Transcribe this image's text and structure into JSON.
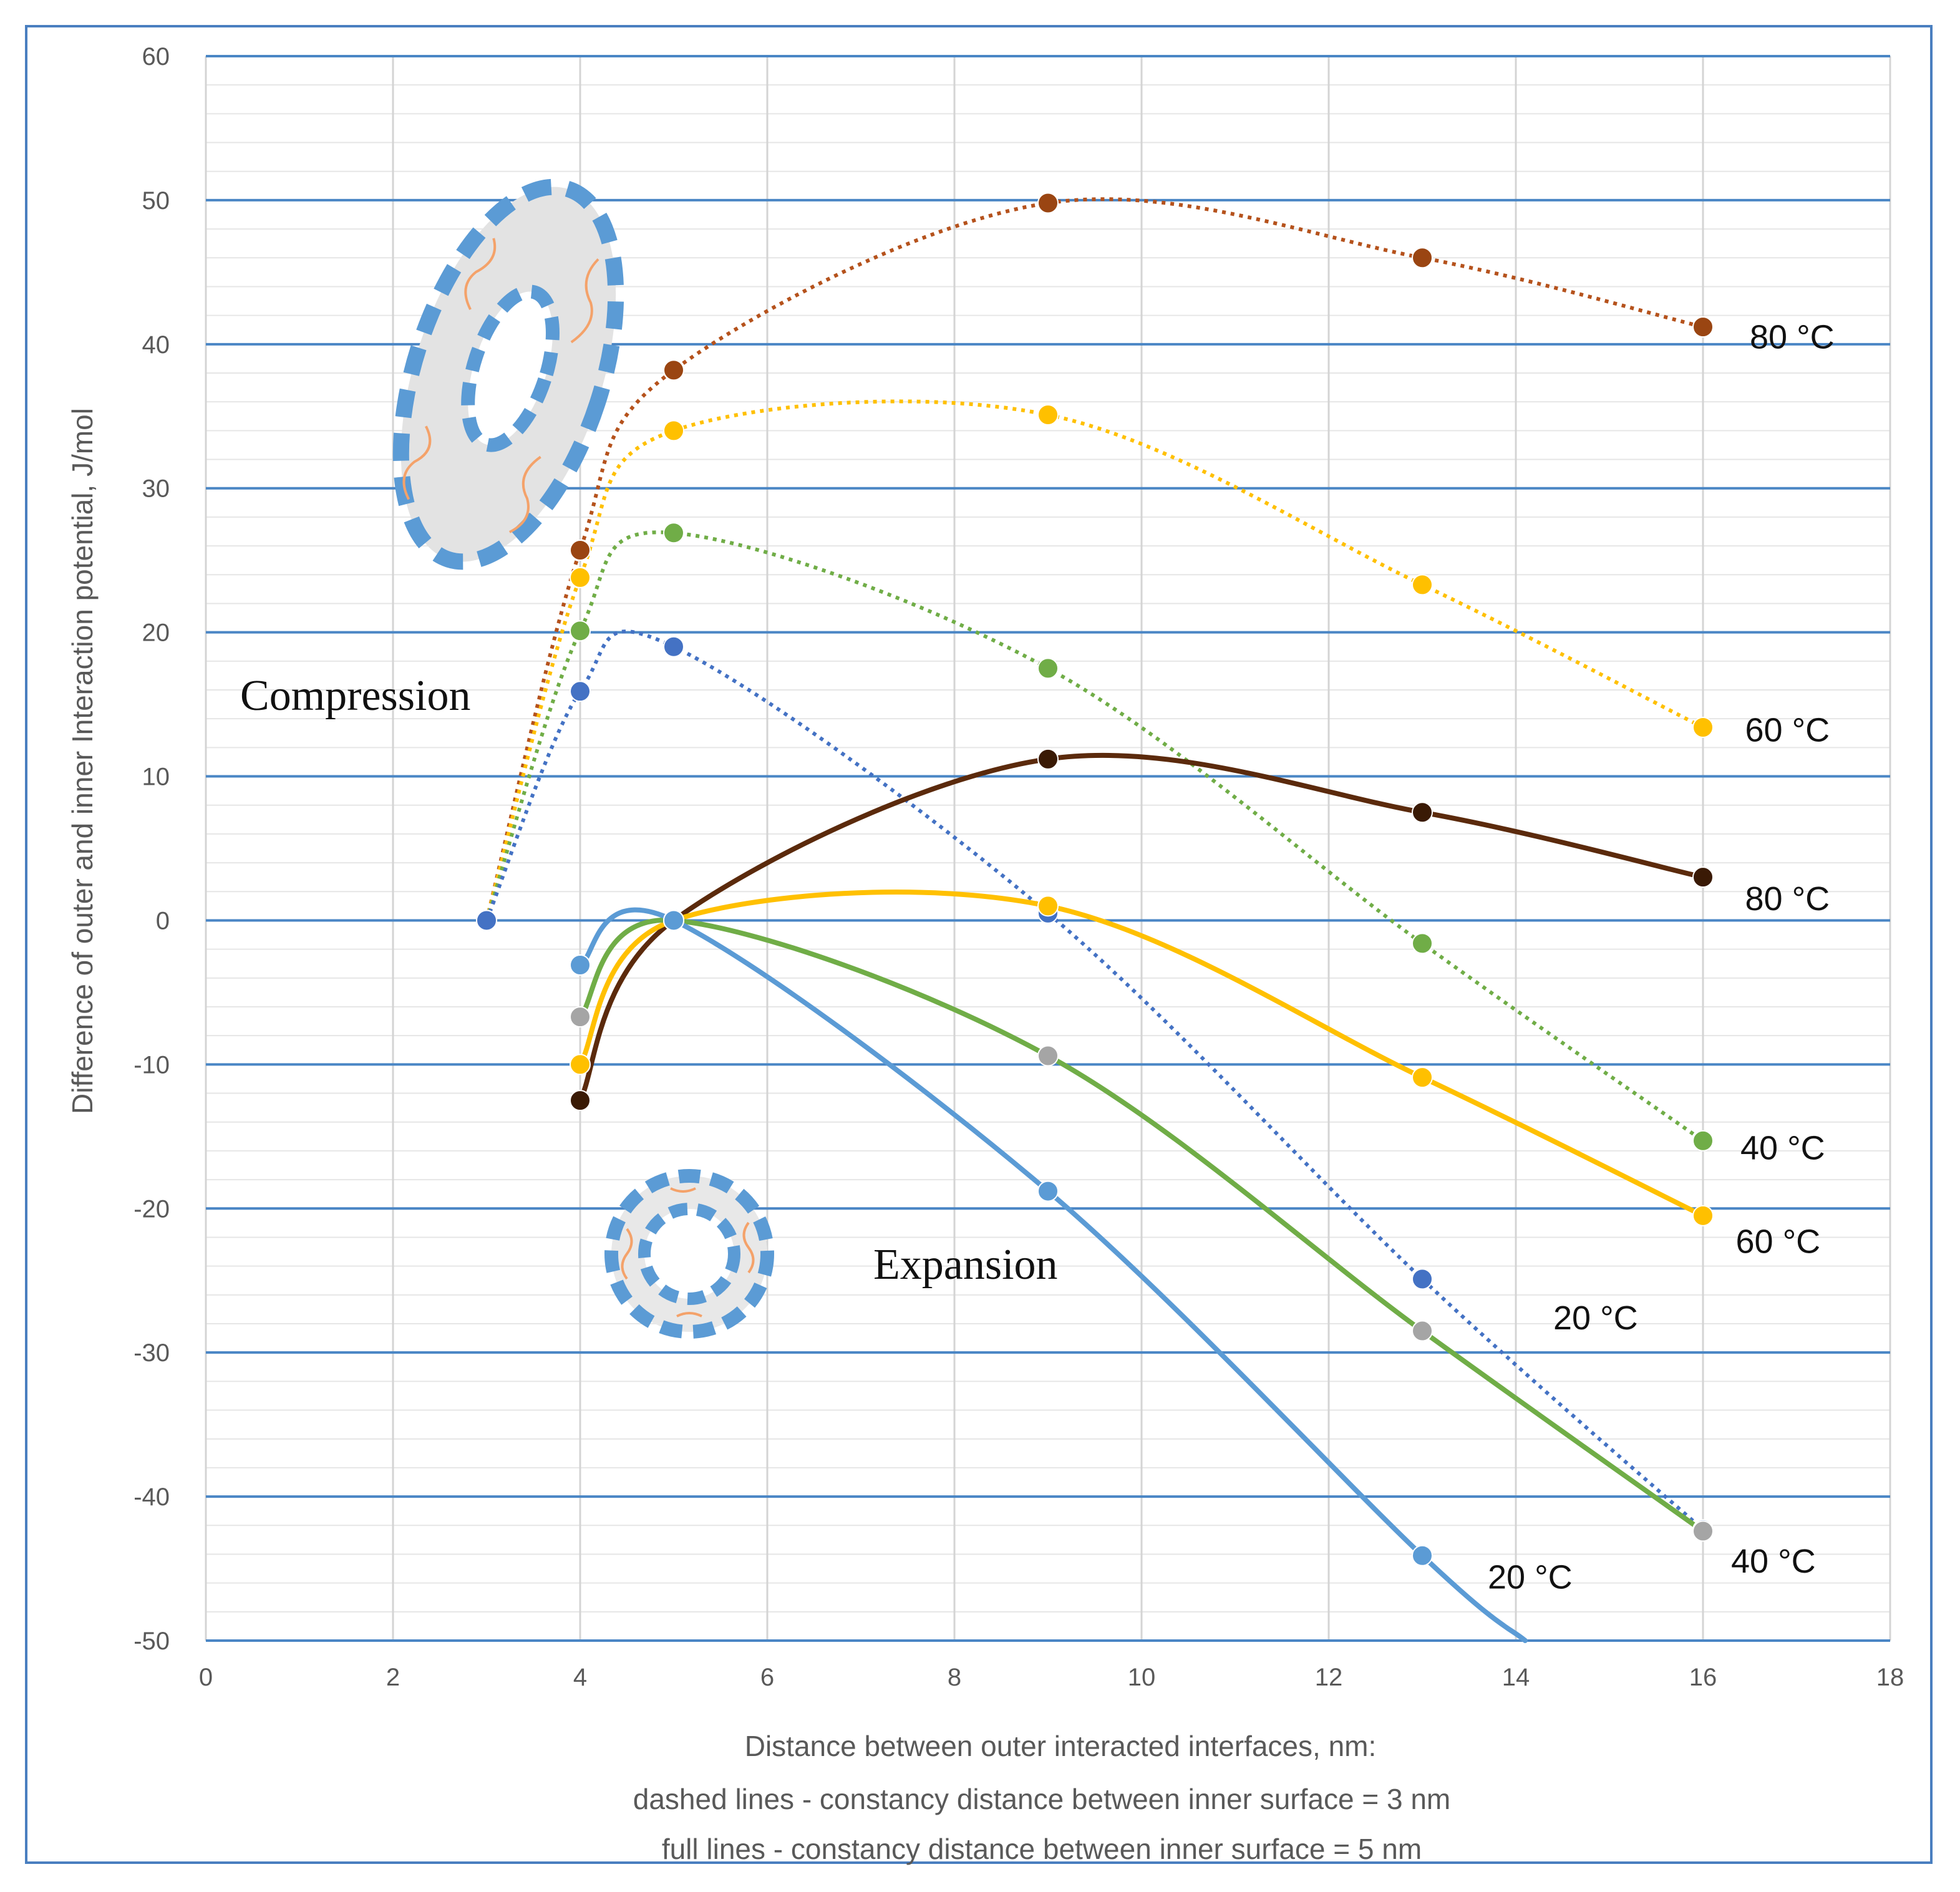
{
  "chart_data": {
    "type": "line",
    "title": "",
    "xlabel": "Distance between  outer interacted interfaces, nm:",
    "xlabel_lines": [
      "dashed lines - constancy distance between  inner surface = 3 nm",
      "full lines - constancy distance between  inner surface = 5 nm"
    ],
    "ylabel": "Difference of outer  and inner Interaction potential, J/mol",
    "xlim": [
      0,
      18
    ],
    "ylim": [
      -50,
      60
    ],
    "x_ticks": [
      0,
      2,
      4,
      6,
      8,
      10,
      12,
      14,
      16,
      18
    ],
    "y_ticks": [
      60,
      50,
      40,
      30,
      20,
      10,
      0,
      -10,
      -20,
      -30,
      -40,
      -50
    ],
    "annotations": [
      "Compression",
      "Expansion"
    ],
    "series": [
      {
        "name": "80 °C",
        "style": "dashed",
        "color": "#b5521c",
        "marker": "#9a4512",
        "x": [
          3,
          4,
          5,
          9,
          13,
          16
        ],
        "y": [
          0,
          25.7,
          38.2,
          49.8,
          46,
          41.2
        ],
        "label_pos": [
          16.5,
          40.5
        ]
      },
      {
        "name": "60 °C",
        "style": "dashed",
        "color": "#ffc000",
        "marker": "#ffc000",
        "x": [
          3,
          4,
          5,
          9,
          13,
          16
        ],
        "y": [
          0,
          23.8,
          34,
          35.1,
          23.3,
          13.4
        ],
        "label_pos": [
          16.45,
          13.2
        ]
      },
      {
        "name": "40 °C",
        "style": "dashed",
        "color": "#70ad47",
        "marker": "#70ad47",
        "x": [
          3,
          4,
          5,
          9,
          13,
          16
        ],
        "y": [
          0,
          20.1,
          26.9,
          17.5,
          -1.6,
          -15.3
        ],
        "label_pos": [
          16.4,
          -15.8
        ]
      },
      {
        "name": "20 °C",
        "style": "dashed",
        "color": "#4472c4",
        "marker": "#4472c4",
        "x": [
          3,
          4,
          5,
          9,
          13,
          16
        ],
        "y": [
          0,
          15.9,
          19,
          0.5,
          -24.9,
          -42.3
        ],
        "label_pos": [
          14.4,
          -27.6
        ]
      },
      {
        "name": "80 °C",
        "style": "solid",
        "color": "#5b2a0c",
        "marker": "#3a1a05",
        "x": [
          4,
          5,
          9,
          13,
          16
        ],
        "y": [
          -12.5,
          0,
          11.2,
          7.5,
          3
        ],
        "label_pos": [
          16.45,
          1.5
        ]
      },
      {
        "name": "60 °C",
        "style": "solid",
        "color": "#ffc000",
        "marker": "#ffc000",
        "x": [
          4,
          5,
          9,
          13,
          16
        ],
        "y": [
          -10,
          0,
          1,
          -10.9,
          -20.5
        ],
        "label_pos": [
          16.35,
          -22.3
        ]
      },
      {
        "name": "40 °C",
        "style": "solid",
        "color": "#70ad47",
        "marker": "#a5a5a5",
        "x": [
          4,
          5,
          9,
          13,
          16
        ],
        "y": [
          -6.7,
          0,
          -9.4,
          -28.5,
          -42.4
        ],
        "label_pos": [
          16.3,
          -44.5
        ]
      },
      {
        "name": "20 °C",
        "style": "solid",
        "color": "#5b9bd5",
        "marker": "#5b9bd5",
        "x": [
          4,
          5,
          9,
          13,
          14.1
        ],
        "y": [
          -3.1,
          0,
          -18.8,
          -44.1,
          -50
        ],
        "label_pos": [
          13.7,
          -45.6
        ]
      }
    ]
  }
}
